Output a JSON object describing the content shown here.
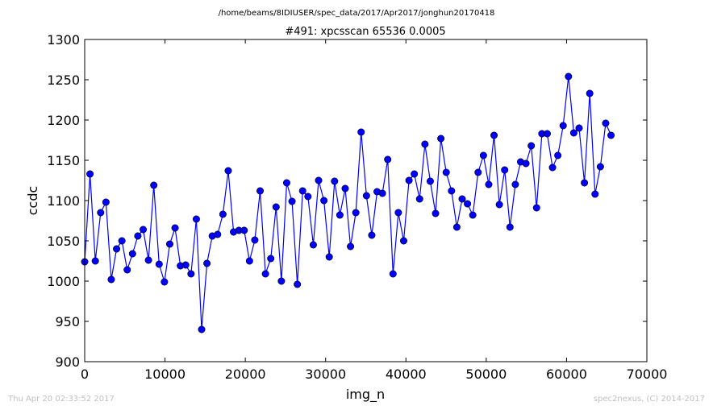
{
  "suptitle": "/home/beams/8IDIUSER/spec_data/2017/Apr2017/jonghun20170418",
  "footer_left": "Thu Apr 20 02:33:52 2017",
  "footer_right": "spec2nexus, (C) 2014-2017",
  "colors": {
    "series": "#0000ff",
    "footer": "#c0c0c0"
  },
  "chart_data": {
    "type": "line",
    "title": "#491: xpcsscan 65536 0.0005",
    "xlabel": "img_n",
    "ylabel": "ccdc",
    "xlim": [
      0,
      70000
    ],
    "ylim": [
      900,
      1300
    ],
    "xticks": [
      0,
      10000,
      20000,
      30000,
      40000,
      50000,
      60000,
      70000
    ],
    "yticks": [
      900,
      950,
      1000,
      1050,
      1100,
      1150,
      1200,
      1250,
      1300
    ],
    "grid": false,
    "markers": "circle",
    "series": [
      {
        "values": [
          1024,
          1133,
          1025,
          1085,
          1098,
          1002,
          1040,
          1050,
          1014,
          1034,
          1056,
          1064,
          1026,
          1119,
          1021,
          999,
          1046,
          1066,
          1019,
          1020,
          1009,
          1077,
          940,
          1022,
          1056,
          1058,
          1083,
          1137,
          1061,
          1063,
          1063,
          1025,
          1051,
          1112,
          1009,
          1028,
          1092,
          1000,
          1122,
          1099,
          996,
          1112,
          1105,
          1045,
          1125,
          1100,
          1030,
          1124,
          1082,
          1115,
          1043,
          1085,
          1185,
          1106,
          1057,
          1111,
          1109,
          1151,
          1009,
          1085,
          1050,
          1125,
          1133,
          1102,
          1170,
          1124,
          1084,
          1177,
          1135,
          1112,
          1067,
          1102,
          1096,
          1082,
          1135,
          1156,
          1120,
          1181,
          1095,
          1138,
          1067,
          1120,
          1148,
          1146,
          1168,
          1091,
          1183,
          1183,
          1141,
          1156,
          1193,
          1254,
          1184,
          1190,
          1122,
          1233,
          1108,
          1142,
          1196,
          1181
        ]
      }
    ]
  }
}
